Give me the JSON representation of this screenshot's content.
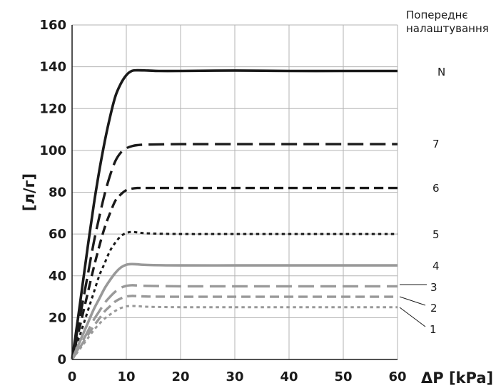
{
  "chart_data": {
    "type": "line",
    "title": "",
    "xlabel": "ΔP [kPa]",
    "ylabel": "[л/г]",
    "xlim": [
      0,
      60
    ],
    "ylim": [
      0,
      160
    ],
    "x_ticks": [
      "0",
      "10",
      "20",
      "30",
      "40",
      "50",
      "60"
    ],
    "y_ticks": [
      "0",
      "20",
      "40",
      "60",
      "80",
      "100",
      "120",
      "140",
      "160"
    ],
    "grid": true,
    "legend_title": [
      "Попереднє",
      "налаштування"
    ],
    "series": [
      {
        "name": "N",
        "color": "#1a1a1a",
        "style": "solid",
        "x": [
          0,
          1,
          2,
          3,
          4,
          5,
          6,
          7,
          8,
          9,
          10,
          11,
          12,
          14,
          16,
          20,
          30,
          40,
          50,
          60
        ],
        "y": [
          0,
          18,
          37,
          56,
          74,
          90,
          104,
          116,
          126,
          132,
          136,
          138,
          138.3,
          138.2,
          138,
          138,
          138.2,
          138,
          138,
          138
        ]
      },
      {
        "name": "7",
        "color": "#1a1a1a",
        "style": "dash-long",
        "x": [
          0,
          1,
          2,
          3,
          4,
          5,
          6,
          7,
          8,
          9,
          10,
          11,
          12,
          14,
          20,
          30,
          40,
          50,
          60
        ],
        "y": [
          0,
          14,
          28,
          42,
          56,
          68,
          79,
          88,
          95,
          99,
          101,
          102,
          102.5,
          102.8,
          103,
          103,
          103,
          103,
          103
        ]
      },
      {
        "name": "6",
        "color": "#1a1a1a",
        "style": "dash-medium",
        "x": [
          0,
          1,
          2,
          3,
          4,
          5,
          6,
          7,
          8,
          9,
          10,
          11,
          12,
          14,
          20,
          30,
          40,
          50,
          60
        ],
        "y": [
          0,
          11,
          22,
          33,
          44,
          54,
          63,
          70,
          76,
          79,
          81,
          81.7,
          82,
          82,
          82,
          82,
          82,
          82,
          82
        ]
      },
      {
        "name": "5",
        "color": "#1a1a1a",
        "style": "dot",
        "x": [
          0,
          1,
          2,
          3,
          4,
          5,
          6,
          7,
          8,
          9,
          10,
          11,
          12,
          14,
          20,
          30,
          40,
          50,
          60
        ],
        "y": [
          0,
          8,
          16,
          24,
          32,
          40,
          46,
          52,
          56,
          59,
          60.5,
          61,
          60.8,
          60.3,
          60,
          60,
          60,
          60,
          60
        ]
      },
      {
        "name": "4",
        "color": "#999999",
        "style": "solid",
        "x": [
          0,
          1,
          2,
          3,
          4,
          5,
          6,
          7,
          8,
          9,
          10,
          11,
          12,
          14,
          20,
          30,
          40,
          50,
          60
        ],
        "y": [
          0,
          6,
          12,
          18,
          24,
          29,
          34,
          38,
          41.5,
          44,
          45.3,
          45.6,
          45.5,
          45.2,
          45,
          45,
          45,
          45,
          45
        ]
      },
      {
        "name": "3",
        "color": "#999999",
        "style": "dash-long",
        "x": [
          0,
          1,
          2,
          3,
          4,
          5,
          6,
          7,
          8,
          9,
          10,
          11,
          12,
          14,
          20,
          30,
          40,
          50,
          60
        ],
        "y": [
          0,
          4.5,
          9,
          14,
          19,
          23,
          27,
          30,
          32.5,
          34.3,
          35.2,
          35.5,
          35.4,
          35.2,
          35,
          35,
          35,
          35,
          35
        ]
      },
      {
        "name": "2",
        "color": "#999999",
        "style": "dash-medium",
        "x": [
          0,
          1,
          2,
          3,
          4,
          5,
          6,
          7,
          8,
          9,
          10,
          11,
          12,
          14,
          20,
          30,
          40,
          50,
          60
        ],
        "y": [
          0,
          4,
          8,
          12,
          16,
          19.5,
          23,
          25.5,
          27.8,
          29.2,
          30.1,
          30.4,
          30.3,
          30.1,
          30,
          30,
          30,
          30,
          30
        ]
      },
      {
        "name": "1",
        "color": "#999999",
        "style": "dot",
        "x": [
          0,
          1,
          2,
          3,
          4,
          5,
          6,
          7,
          8,
          9,
          10,
          11,
          12,
          14,
          20,
          30,
          40,
          50,
          60
        ],
        "y": [
          0,
          3.5,
          7,
          10.5,
          14,
          17,
          19.5,
          21.5,
          23.3,
          24.6,
          25.4,
          25.6,
          25.5,
          25.2,
          25,
          25,
          25,
          25,
          25
        ]
      }
    ]
  }
}
